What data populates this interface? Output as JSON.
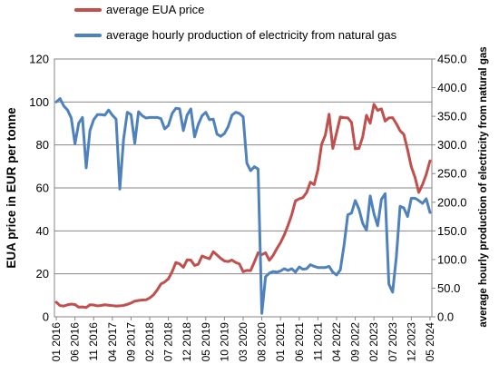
{
  "chart_data": {
    "type": "line",
    "title": "",
    "xlabel": "",
    "ylabel": "EUA price in EUR per tonne",
    "y2label": "average hourly production of electricity from natural gas",
    "ylim": [
      0,
      120
    ],
    "yticks": [
      "0",
      "20",
      "40",
      "60",
      "80",
      "100",
      "120"
    ],
    "y2lim": [
      0,
      450
    ],
    "y2ticks": [
      "0.0",
      "50.0",
      "100.0",
      "150.0",
      "200.0",
      "250.0",
      "300.0",
      "350.0",
      "400.0",
      "450.0"
    ],
    "x_tick_labels": [
      "01 2016",
      "06 2016",
      "11 2016",
      "04 2017",
      "09 2017",
      "02 2018",
      "07 2018",
      "12 2018",
      "05 2019",
      "10 2019",
      "03 2020",
      "08 2020",
      "01 2021",
      "06 2021",
      "11 2021",
      "04 2022",
      "09 2022",
      "02 2023",
      "07 2023",
      "12 2023",
      "05 2024"
    ],
    "grid": true,
    "legend": "top",
    "series": [
      {
        "name": "average EUA price",
        "axis": "left",
        "color": "#c0504d",
        "values": [
          6.8,
          5.2,
          5.0,
          5.6,
          5.9,
          5.7,
          4.5,
          4.6,
          4.3,
          5.6,
          5.5,
          5.1,
          5.3,
          5.6,
          5.4,
          5.2,
          5.0,
          5.1,
          5.3,
          5.8,
          6.4,
          7.3,
          7.6,
          7.8,
          7.9,
          8.8,
          10.2,
          12.5,
          15.3,
          16.2,
          17.7,
          21.0,
          25.3,
          24.6,
          23.0,
          26.5,
          26.4,
          23.9,
          24.5,
          28.3,
          27.6,
          27.0,
          30.3,
          28.8,
          27.2,
          26.0,
          25.7,
          26.4,
          25.3,
          24.6,
          21.0,
          21.6,
          21.5,
          25.5,
          29.8,
          28.9,
          29.8,
          26.3,
          28.5,
          31.7,
          34.5,
          38.1,
          42.5,
          47.5,
          54.0,
          54.9,
          55.5,
          57.9,
          62.7,
          61.5,
          68.4,
          80.3,
          84.6,
          94.3,
          78.4,
          85.6,
          93.0,
          92.7,
          92.6,
          90.5,
          78.2,
          78.4,
          83.8,
          93.8,
          90.1,
          98.9,
          96.1,
          96.8,
          91.1,
          92.6,
          92.7,
          89.9,
          86.6,
          84.9,
          77.8,
          69.8,
          64.9,
          57.9,
          61.6,
          66.3,
          72.6
        ]
      },
      {
        "name": "average hourly production of electricity from natural gas",
        "axis": "right",
        "color": "#4f81bd",
        "values": [
          375,
          381,
          368,
          361,
          347,
          302,
          338,
          348,
          260,
          325,
          344,
          353,
          353,
          352,
          361,
          352,
          345,
          223,
          310,
          357,
          353,
          303,
          358,
          351,
          347,
          348,
          348,
          348,
          346,
          328,
          334,
          355,
          364,
          363,
          325,
          352,
          363,
          314,
          336,
          351,
          357,
          344,
          345,
          319,
          315,
          320,
          332,
          352,
          357,
          355,
          349,
          268,
          255,
          262,
          258,
          6,
          70,
          76,
          79,
          78,
          80,
          84,
          81,
          84,
          78,
          87,
          83,
          84,
          91,
          88,
          86,
          86,
          86,
          88,
          78,
          73,
          82,
          125,
          178,
          181,
          203,
          188,
          163,
          151,
          211,
          180,
          159,
          205,
          215,
          57,
          43,
          105,
          193,
          190,
          175,
          207,
          207,
          203,
          198,
          206,
          182
        ]
      }
    ]
  }
}
